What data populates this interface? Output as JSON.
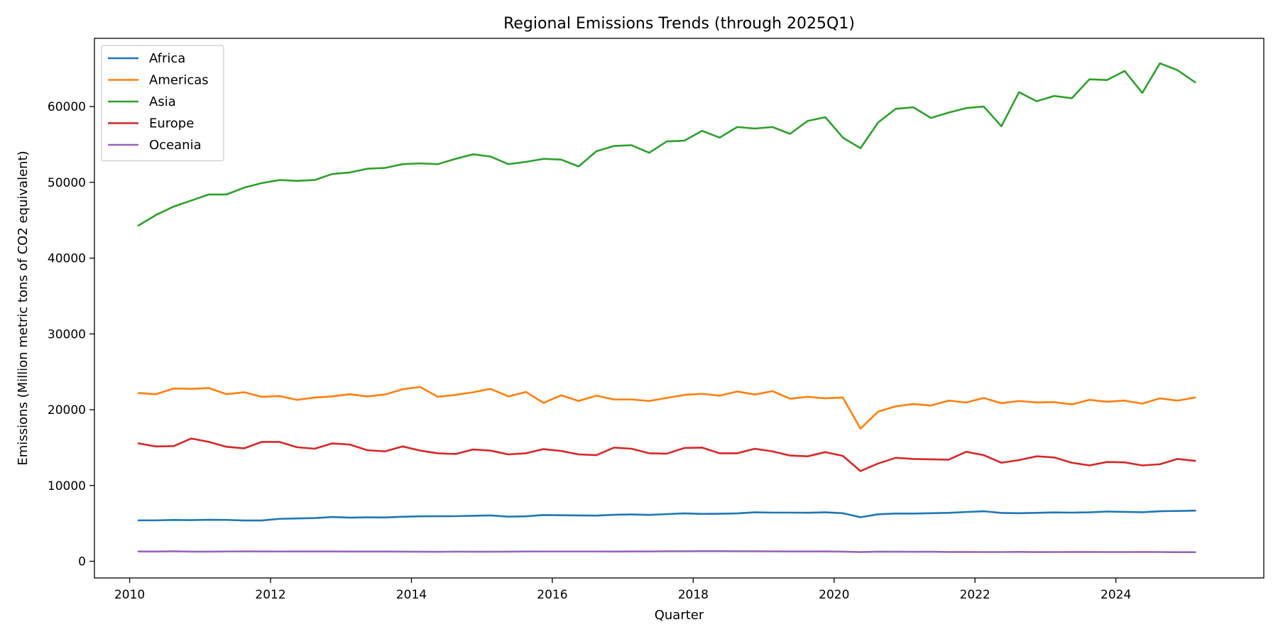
{
  "chart_data": {
    "type": "line",
    "title": "Regional Emissions Trends (through 2025Q1)",
    "xlabel": "Quarter",
    "ylabel": "Emissions (Million metric tons of CO2 equivalent)",
    "xlim": [
      2009.5,
      2026.1
    ],
    "ylim": [
      -2200,
      69000
    ],
    "x_ticks": [
      2010,
      2012,
      2014,
      2016,
      2018,
      2020,
      2022,
      2024
    ],
    "y_ticks": [
      0,
      10000,
      20000,
      30000,
      40000,
      50000,
      60000
    ],
    "grid": false,
    "legend_position": "top-left",
    "x_start": 2010.125,
    "x_step": 0.25,
    "series": [
      {
        "name": "Africa",
        "color": "#1f77b4",
        "values": [
          5400,
          5400,
          5450,
          5430,
          5480,
          5460,
          5380,
          5380,
          5600,
          5650,
          5700,
          5840,
          5760,
          5790,
          5780,
          5870,
          5930,
          5940,
          5950,
          6000,
          6050,
          5890,
          5930,
          6100,
          6070,
          6050,
          6030,
          6130,
          6180,
          6120,
          6220,
          6320,
          6250,
          6270,
          6320,
          6460,
          6420,
          6420,
          6400,
          6460,
          6340,
          5810,
          6200,
          6300,
          6300,
          6340,
          6390,
          6500,
          6600,
          6380,
          6340,
          6390,
          6450,
          6420,
          6460,
          6560,
          6520,
          6470,
          6600,
          6640,
          6680
        ]
      },
      {
        "name": "Americas",
        "color": "#ff7f0e",
        "values": [
          22200,
          22050,
          22800,
          22750,
          22850,
          22050,
          22300,
          21700,
          21800,
          21300,
          21600,
          21750,
          22050,
          21750,
          22000,
          22700,
          23000,
          21700,
          21950,
          22300,
          22750,
          21750,
          22350,
          20900,
          21900,
          21150,
          21850,
          21350,
          21350,
          21150,
          21550,
          21950,
          22100,
          21850,
          22400,
          22000,
          22450,
          21450,
          21700,
          21500,
          21600,
          17500,
          19750,
          20450,
          20750,
          20550,
          21200,
          20950,
          21550,
          20850,
          21150,
          20950,
          21000,
          20700,
          21300,
          21050,
          21200,
          20800,
          21500,
          21200,
          21600
        ]
      },
      {
        "name": "Asia",
        "color": "#2ca02c",
        "values": [
          44300,
          45700,
          46800,
          47600,
          48400,
          48400,
          49300,
          49900,
          50300,
          50200,
          50300,
          51100,
          51300,
          51800,
          51900,
          52400,
          52500,
          52400,
          53100,
          53700,
          53400,
          52400,
          52700,
          53100,
          53000,
          52100,
          54100,
          54800,
          54900,
          53900,
          55400,
          55500,
          56800,
          55900,
          57300,
          57100,
          57300,
          56400,
          58100,
          58600,
          55900,
          54500,
          57900,
          59700,
          59900,
          58500,
          59200,
          59800,
          60000,
          57400,
          61900,
          60700,
          61400,
          61100,
          63600,
          63500,
          64700,
          61800,
          65700,
          64800,
          63200
        ]
      },
      {
        "name": "Europe",
        "color": "#d62728",
        "values": [
          15550,
          15150,
          15200,
          16200,
          15750,
          15100,
          14900,
          15750,
          15750,
          15050,
          14850,
          15550,
          15400,
          14650,
          14500,
          15150,
          14600,
          14250,
          14150,
          14750,
          14600,
          14100,
          14250,
          14800,
          14550,
          14100,
          14000,
          15000,
          14850,
          14250,
          14200,
          14950,
          15000,
          14250,
          14250,
          14850,
          14500,
          13950,
          13850,
          14400,
          13900,
          11900,
          12900,
          13650,
          13500,
          13450,
          13400,
          14450,
          14000,
          13000,
          13350,
          13850,
          13700,
          13000,
          12650,
          13100,
          13050,
          12650,
          12800,
          13500,
          13250
        ]
      },
      {
        "name": "Oceania",
        "color": "#9467bd",
        "values": [
          1300,
          1280,
          1320,
          1270,
          1270,
          1290,
          1310,
          1300,
          1290,
          1300,
          1300,
          1300,
          1280,
          1280,
          1280,
          1270,
          1260,
          1250,
          1270,
          1260,
          1260,
          1270,
          1290,
          1290,
          1290,
          1290,
          1290,
          1280,
          1300,
          1300,
          1320,
          1320,
          1330,
          1330,
          1320,
          1320,
          1310,
          1300,
          1300,
          1300,
          1270,
          1210,
          1270,
          1260,
          1250,
          1260,
          1230,
          1230,
          1220,
          1220,
          1240,
          1210,
          1220,
          1230,
          1230,
          1220,
          1220,
          1230,
          1220,
          1200,
          1200
        ]
      }
    ]
  }
}
